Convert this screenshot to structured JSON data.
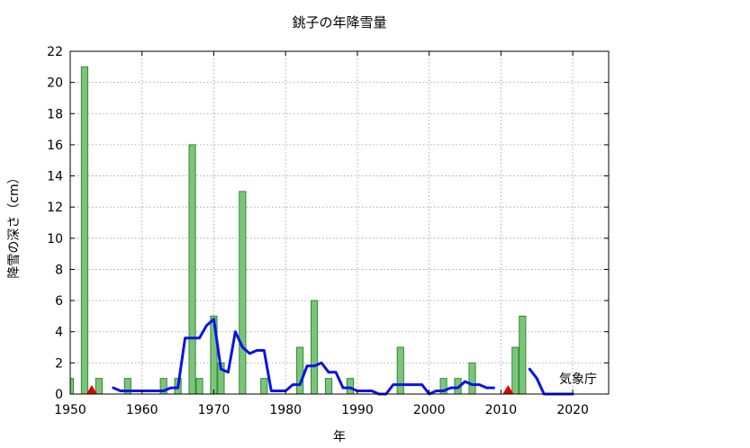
{
  "chart_data": {
    "type": "bar",
    "title": "銚子の年降雪量",
    "xlabel": "年",
    "ylabel": "降雪の深さ（cm）",
    "annotation": "気象庁",
    "xlim": [
      1950,
      2025
    ],
    "ylim": [
      0,
      22
    ],
    "xticks": [
      1950,
      1960,
      1970,
      1980,
      1990,
      2000,
      2010,
      2020
    ],
    "yticks": [
      0,
      2,
      4,
      6,
      8,
      10,
      12,
      14,
      16,
      18,
      20,
      22
    ],
    "grid": true,
    "colors": {
      "bar_fill": "#7cc47c",
      "bar_stroke": "#2f8a2f",
      "line": "#0a14e6",
      "marker": "#e00000",
      "grid": "#999999"
    },
    "bars": [
      {
        "x": 1950,
        "y": 1
      },
      {
        "x": 1952,
        "y": 21
      },
      {
        "x": 1954,
        "y": 1
      },
      {
        "x": 1958,
        "y": 1
      },
      {
        "x": 1963,
        "y": 1
      },
      {
        "x": 1965,
        "y": 1
      },
      {
        "x": 1967,
        "y": 16
      },
      {
        "x": 1968,
        "y": 1
      },
      {
        "x": 1970,
        "y": 5
      },
      {
        "x": 1971,
        "y": 2
      },
      {
        "x": 1974,
        "y": 13
      },
      {
        "x": 1977,
        "y": 1
      },
      {
        "x": 1982,
        "y": 3
      },
      {
        "x": 1984,
        "y": 6
      },
      {
        "x": 1986,
        "y": 1
      },
      {
        "x": 1989,
        "y": 1
      },
      {
        "x": 1996,
        "y": 3
      },
      {
        "x": 2002,
        "y": 1
      },
      {
        "x": 2004,
        "y": 1
      },
      {
        "x": 2006,
        "y": 2
      },
      {
        "x": 2012,
        "y": 3
      },
      {
        "x": 2013,
        "y": 5
      }
    ],
    "moving_average": [
      [
        [
          1956,
          0.4
        ],
        [
          1957,
          0.2
        ],
        [
          1963,
          0.2
        ],
        [
          1964,
          0.4
        ],
        [
          1965,
          0.4
        ],
        [
          1966,
          3.6
        ],
        [
          1968,
          3.6
        ],
        [
          1969,
          4.4
        ],
        [
          1970,
          4.8
        ],
        [
          1971,
          1.6
        ],
        [
          1972,
          1.4
        ],
        [
          1973,
          4.0
        ],
        [
          1974,
          3.0
        ],
        [
          1975,
          2.6
        ],
        [
          1976,
          2.8
        ],
        [
          1977,
          2.8
        ],
        [
          1978,
          0.2
        ],
        [
          1980,
          0.2
        ],
        [
          1981,
          0.6
        ],
        [
          1982,
          0.6
        ],
        [
          1983,
          1.8
        ],
        [
          1984,
          1.8
        ],
        [
          1985,
          2.0
        ],
        [
          1986,
          1.4
        ],
        [
          1987,
          1.4
        ],
        [
          1988,
          0.4
        ],
        [
          1989,
          0.4
        ],
        [
          1990,
          0.2
        ],
        [
          1992,
          0.2
        ],
        [
          1993,
          0.0
        ],
        [
          1994,
          0.0
        ],
        [
          1995,
          0.6
        ],
        [
          1999,
          0.6
        ],
        [
          2000,
          0.0
        ],
        [
          2001,
          0.2
        ],
        [
          2002,
          0.2
        ],
        [
          2003,
          0.4
        ],
        [
          2004,
          0.4
        ],
        [
          2005,
          0.8
        ],
        [
          2006,
          0.6
        ],
        [
          2007,
          0.6
        ],
        [
          2008,
          0.4
        ],
        [
          2009,
          0.4
        ]
      ],
      [
        [
          2014,
          1.6
        ],
        [
          2015,
          1.0
        ],
        [
          2016,
          0.0
        ],
        [
          2020,
          0.0
        ]
      ]
    ],
    "markers": [
      1953,
      2011
    ]
  }
}
